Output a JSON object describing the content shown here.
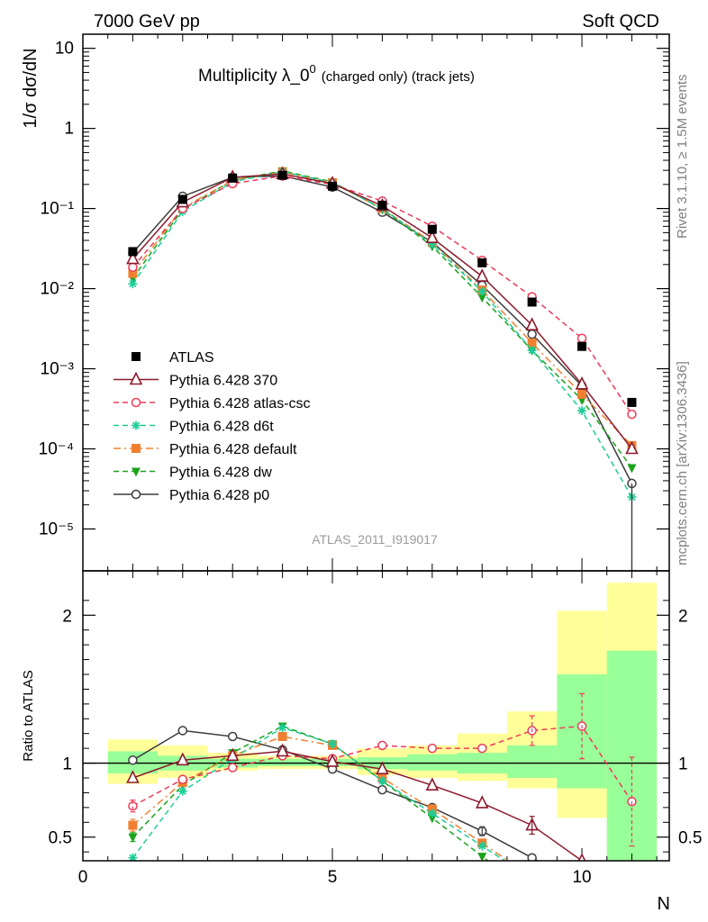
{
  "header": {
    "left": "7000 GeV pp",
    "right": "Soft QCD"
  },
  "side_labels": {
    "rivet": "Rivet 3.1.10, ≥ 1.5M events",
    "mcplots": "mcplots.cern.ch [arXiv:1306.3436]"
  },
  "colors": {
    "ATLAS": "#000000",
    "p370": "#8b1a2c",
    "atlas_csc": "#ee3a5a",
    "d6t": "#1dcc96",
    "default": "#f08030",
    "dw": "#1aa31a",
    "p0": "#3c3c3c",
    "band_outer": "#ffff99",
    "band_inner": "#99ff99"
  },
  "chart_data": [
    {
      "type": "line",
      "title": "Multiplicity λ_0⁰ (charged only) (track jets)",
      "title_main": "Multiplicity λ_0",
      "title_sup": "0",
      "title_extra": "(charged only) (track jets)",
      "ylabel": "1/σ dσ/dN",
      "yscale": "log",
      "ylim": [
        3e-06,
        15
      ],
      "xlim": [
        0,
        11.75
      ],
      "yticks": [
        {
          "label": "10",
          "value": 10
        },
        {
          "label": "1",
          "value": 1
        },
        {
          "label": "10⁻¹",
          "value": 0.1
        },
        {
          "label": "10⁻²",
          "value": 0.01
        },
        {
          "label": "10⁻³",
          "value": 0.001
        },
        {
          "label": "10⁻⁴",
          "value": 0.0001
        },
        {
          "label": "10⁻⁵",
          "value": 1e-05
        }
      ],
      "watermark": "ATLAS_2011_I919017",
      "legend_placement": "bottom-left",
      "x": [
        1,
        2,
        3,
        4,
        5,
        6,
        7,
        8,
        9,
        10,
        11
      ],
      "series": [
        {
          "name": "ATLAS",
          "key": "ATLAS",
          "marker": "square-filled",
          "values": [
            0.029,
            0.13,
            0.24,
            0.26,
            0.19,
            0.11,
            0.055,
            0.021,
            0.0068,
            0.0019,
            0.00038
          ]
        },
        {
          "name": "Pythia 6.428 370",
          "key": "p370",
          "marker": "triangle-open",
          "dash": "solid",
          "values": [
            0.0235,
            0.12,
            0.245,
            0.27,
            0.205,
            0.108,
            0.043,
            0.0142,
            0.0035,
            0.00064,
            0.0001
          ]
        },
        {
          "name": "Pythia 6.428 atlas-csc",
          "key": "atlas_csc",
          "marker": "circle-open",
          "dash": "dashed",
          "values": [
            0.0185,
            0.1,
            0.205,
            0.255,
            0.2,
            0.124,
            0.06,
            0.0225,
            0.0079,
            0.0024,
            0.00027
          ]
        },
        {
          "name": "Pythia 6.428 d6t",
          "key": "d6t",
          "marker": "star",
          "dash": "dashed",
          "values": [
            0.0115,
            0.092,
            0.215,
            0.29,
            0.21,
            0.1,
            0.036,
            0.0092,
            0.0017,
            0.0003,
            2.5e-05
          ]
        },
        {
          "name": "Pythia 6.428 default",
          "key": "default",
          "marker": "square-filled",
          "dash": "dashdot",
          "values": [
            0.0155,
            0.102,
            0.225,
            0.285,
            0.21,
            0.1,
            0.038,
            0.0096,
            0.0021,
            0.00048,
            0.00011
          ]
        },
        {
          "name": "Pythia 6.428 dw",
          "key": "dw",
          "marker": "triangle-down-filled",
          "dash": "dashed",
          "values": [
            0.0135,
            0.098,
            0.225,
            0.295,
            0.215,
            0.098,
            0.034,
            0.0078,
            0.0017,
            0.00041,
            5.8e-05
          ]
        },
        {
          "name": "Pythia 6.428 p0",
          "key": "p0",
          "marker": "circle-open",
          "dash": "solid",
          "values": [
            0.028,
            0.142,
            0.245,
            0.255,
            0.185,
            0.09,
            0.038,
            0.011,
            0.0027,
            0.00061,
            3.7e-05
          ]
        }
      ]
    },
    {
      "type": "line",
      "ylabel": "Ratio to ATLAS",
      "xlabel": "N",
      "ylim": [
        0.34,
        2.3
      ],
      "xlim": [
        0,
        11.75
      ],
      "yticks": [
        0.5,
        1,
        2
      ],
      "xticks": [
        0,
        5,
        10
      ],
      "x": [
        1,
        2,
        3,
        4,
        5,
        6,
        7,
        8,
        9,
        10,
        11
      ],
      "band_outer": [
        {
          "x0": 0.5,
          "x1": 1.5,
          "lo": 0.86,
          "hi": 1.16
        },
        {
          "x0": 1.5,
          "x1": 2.5,
          "lo": 0.9,
          "hi": 1.12
        },
        {
          "x0": 2.5,
          "x1": 3.5,
          "lo": 0.95,
          "hi": 1.07
        },
        {
          "x0": 3.5,
          "x1": 4.5,
          "lo": 0.96,
          "hi": 1.05
        },
        {
          "x0": 4.5,
          "x1": 5.5,
          "lo": 0.96,
          "hi": 1.05
        },
        {
          "x0": 5.5,
          "x1": 6.5,
          "lo": 0.92,
          "hi": 1.1
        },
        {
          "x0": 6.5,
          "x1": 7.5,
          "lo": 0.9,
          "hi": 1.12
        },
        {
          "x0": 7.5,
          "x1": 8.5,
          "lo": 0.88,
          "hi": 1.2
        },
        {
          "x0": 8.5,
          "x1": 9.5,
          "lo": 0.83,
          "hi": 1.35
        },
        {
          "x0": 9.5,
          "x1": 10.5,
          "lo": 0.63,
          "hi": 2.03
        },
        {
          "x0": 10.5,
          "x1": 11.5,
          "lo": 0.3,
          "hi": 2.22
        }
      ],
      "band_inner": [
        {
          "x0": 0.5,
          "x1": 1.5,
          "lo": 0.93,
          "hi": 1.08
        },
        {
          "x0": 1.5,
          "x1": 2.5,
          "lo": 0.95,
          "hi": 1.05
        },
        {
          "x0": 2.5,
          "x1": 3.5,
          "lo": 0.97,
          "hi": 1.03
        },
        {
          "x0": 3.5,
          "x1": 4.5,
          "lo": 0.98,
          "hi": 1.03
        },
        {
          "x0": 4.5,
          "x1": 5.5,
          "lo": 0.98,
          "hi": 1.03
        },
        {
          "x0": 5.5,
          "x1": 6.5,
          "lo": 0.96,
          "hi": 1.04
        },
        {
          "x0": 6.5,
          "x1": 7.5,
          "lo": 0.95,
          "hi": 1.06
        },
        {
          "x0": 7.5,
          "x1": 8.5,
          "lo": 0.93,
          "hi": 1.07
        },
        {
          "x0": 8.5,
          "x1": 9.5,
          "lo": 0.9,
          "hi": 1.12
        },
        {
          "x0": 9.5,
          "x1": 10.5,
          "lo": 0.83,
          "hi": 1.6
        },
        {
          "x0": 10.5,
          "x1": 11.5,
          "lo": 0.3,
          "hi": 1.76
        }
      ],
      "series": [
        {
          "key": "p370",
          "marker": "triangle-open",
          "dash": "solid",
          "values": [
            0.9,
            1.02,
            1.05,
            1.08,
            1.01,
            0.96,
            0.85,
            0.73,
            0.58,
            0.34,
            null
          ]
        },
        {
          "key": "atlas_csc",
          "marker": "circle-open",
          "dash": "dashed",
          "values": [
            0.71,
            0.89,
            0.97,
            1.05,
            1.03,
            1.12,
            1.1,
            1.1,
            1.22,
            1.25,
            0.74
          ]
        },
        {
          "key": "d6t",
          "marker": "star",
          "dash": "dashed",
          "values": [
            0.36,
            0.81,
            1.03,
            1.24,
            1.13,
            0.88,
            0.66,
            0.44,
            null,
            null,
            null
          ]
        },
        {
          "key": "default",
          "marker": "square-filled",
          "dash": "dashdot",
          "values": [
            0.58,
            0.87,
            1.05,
            1.18,
            1.12,
            0.9,
            0.69,
            0.46,
            null,
            null,
            null
          ]
        },
        {
          "key": "dw",
          "marker": "triangle-down-filled",
          "dash": "dashed",
          "values": [
            0.5,
            0.85,
            1.07,
            1.25,
            1.13,
            0.88,
            0.63,
            0.37,
            null,
            null,
            null
          ]
        },
        {
          "key": "p0",
          "marker": "circle-open",
          "dash": "solid",
          "values": [
            1.02,
            1.22,
            1.18,
            1.09,
            0.96,
            0.82,
            0.7,
            0.54,
            0.36,
            null,
            null
          ]
        }
      ]
    }
  ]
}
